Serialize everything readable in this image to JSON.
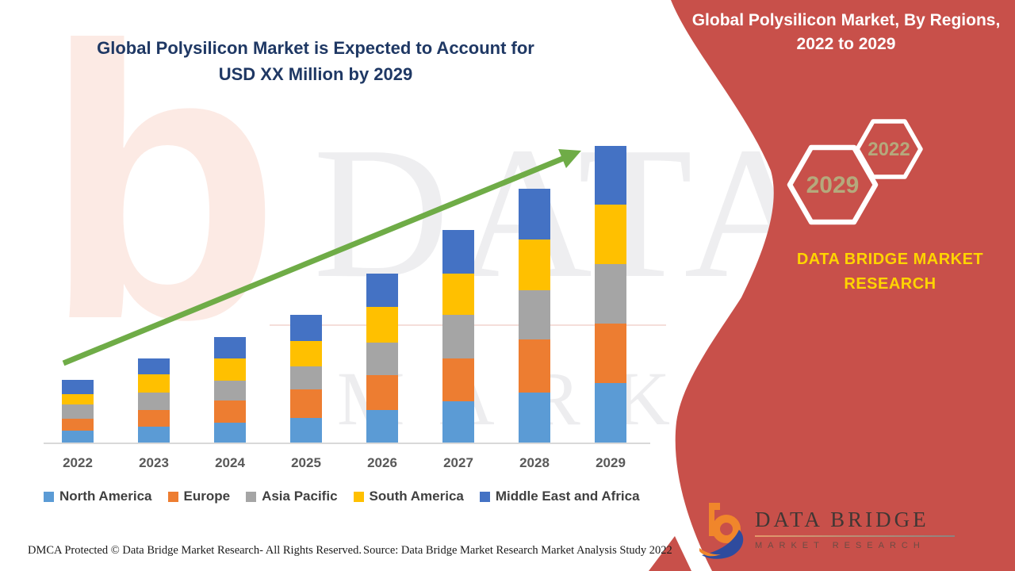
{
  "chart": {
    "title_line1": "Global Polysilicon Market is Expected to Account for",
    "title_line2": "USD XX Million by 2029"
  },
  "side_panel": {
    "title_line1": "Global Polysilicon Market, By Regions,",
    "title_line2": "2022 to 2029",
    "hex_large_label": "2029",
    "hex_small_label": "2022",
    "brand_line1": "DATA BRIDGE MARKET",
    "brand_line2": "RESEARCH"
  },
  "logo": {
    "name": "DATA BRIDGE",
    "tagline": "MARKET RESEARCH"
  },
  "footer": {
    "dmca": "DMCA Protected © Data Bridge Market Research- All Rights Reserved.",
    "source": "Source: Data Bridge Market Research Market Analysis Study 2022"
  },
  "watermark": {
    "letter": "b",
    "line1": "DATA BRIDGE",
    "line2": "MARKET RESEARCH"
  },
  "colors": {
    "red_panel": "#C8504A",
    "title_navy": "#1F3864",
    "arrow_green": "#6FAC47",
    "brand_yellow": "#FFD400",
    "hex_label": "#B5A97C",
    "legend_text": "#404040",
    "axis_label": "#595959"
  },
  "chart_data": {
    "type": "bar",
    "stacked": true,
    "title": "Global Polysilicon Market is Expected to Account for USD XX Million by 2029",
    "xlabel": "",
    "ylabel": "",
    "y_axis_visible": false,
    "legend_position": "bottom",
    "trend_arrow": true,
    "categories": [
      "2022",
      "2023",
      "2024",
      "2025",
      "2026",
      "2027",
      "2028",
      "2029"
    ],
    "series": [
      {
        "name": "North America",
        "color": "#5B9BD5",
        "values": [
          16,
          21,
          26,
          32,
          42,
          53,
          64,
          76
        ]
      },
      {
        "name": "Europe",
        "color": "#ED7D31",
        "values": [
          15,
          21,
          28,
          36,
          44,
          54,
          67,
          75
        ]
      },
      {
        "name": "Asia Pacific",
        "color": "#A5A5A5",
        "values": [
          18,
          22,
          25,
          29,
          41,
          55,
          62,
          75
        ]
      },
      {
        "name": "South America",
        "color": "#FFC000",
        "values": [
          13,
          23,
          28,
          32,
          45,
          52,
          64,
          75
        ]
      },
      {
        "name": "Middle East and Africa",
        "color": "#4472C4",
        "values": [
          18,
          20,
          27,
          33,
          42,
          55,
          64,
          74
        ]
      }
    ],
    "stack_totals": [
      80,
      107,
      134,
      162,
      214,
      269,
      321,
      375
    ],
    "value_units": "relative height units (actual values masked as USD XX Million)"
  }
}
